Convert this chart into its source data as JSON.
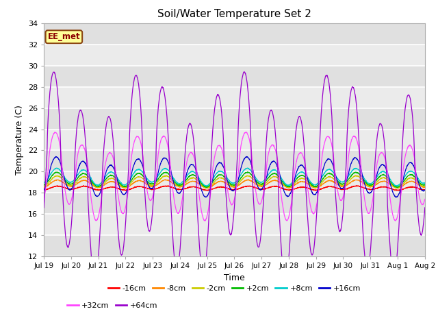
{
  "title": "Soil/Water Temperature Set 2",
  "xlabel": "Time",
  "ylabel": "Temperature (C)",
  "ylim": [
    12,
    34
  ],
  "yticks": [
    12,
    14,
    16,
    18,
    20,
    22,
    24,
    26,
    28,
    30,
    32,
    34
  ],
  "fig_bg": "#ffffff",
  "plot_bg": "#e8e8e8",
  "label_box_text": "EE_met",
  "label_box_bg": "#ffff99",
  "label_box_edge": "#8B4513",
  "series_order": [
    "-16cm",
    "-8cm",
    "-2cm",
    "+2cm",
    "+8cm",
    "+16cm",
    "+32cm",
    "+64cm"
  ],
  "series": {
    "-16cm": {
      "color": "#ff0000"
    },
    "-8cm": {
      "color": "#ff8800"
    },
    "-2cm": {
      "color": "#cccc00"
    },
    "+2cm": {
      "color": "#00bb00"
    },
    "+8cm": {
      "color": "#00cccc"
    },
    "+16cm": {
      "color": "#0000cc"
    },
    "+32cm": {
      "color": "#ff44ff"
    },
    "+64cm": {
      "color": "#9900cc"
    }
  },
  "xtick_labels": [
    "Jul 19",
    "Jul 20",
    "Jul 21",
    "Jul 22",
    "Jul 23",
    "Jul 24",
    "Jul 25",
    "Jul 26",
    "Jul 27",
    "Jul 28",
    "Jul 29",
    "Jul 30",
    "Jul 31",
    "Aug 1",
    "Aug 2"
  ],
  "duration_days": 14,
  "n_points": 2000,
  "base_temps": {
    "-16cm": 18.45,
    "-8cm": 18.85,
    "-2cm": 19.05,
    "+2cm": 19.25,
    "+8cm": 19.5,
    "+16cm": 19.5,
    "+32cm": 19.5,
    "+64cm": 19.5
  },
  "diurnal_amp": {
    "-16cm": 0.15,
    "-8cm": 0.3,
    "-2cm": 0.45,
    "+2cm": 0.55,
    "+8cm": 0.65,
    "+16cm": 1.5,
    "+32cm": 3.2,
    "+64cm": 7.5
  },
  "diurnal_phase": {
    "-16cm": 0.0,
    "-8cm": 0.05,
    "-2cm": 0.1,
    "+2cm": 0.15,
    "+8cm": 0.2,
    "+16cm": 0.3,
    "+32cm": 0.5,
    "+64cm": 0.8
  },
  "slow_amp": {
    "-16cm": 0.05,
    "-8cm": 0.08,
    "-2cm": 0.12,
    "+2cm": 0.15,
    "+8cm": 0.18,
    "+16cm": 0.4,
    "+32cm": 1.0,
    "+64cm": 2.5
  },
  "slow_phase": {
    "-16cm": 0.0,
    "-8cm": 0.1,
    "-2cm": 0.2,
    "+2cm": 0.3,
    "+8cm": 0.4,
    "+16cm": 0.6,
    "+32cm": 0.8,
    "+64cm": 1.2
  }
}
